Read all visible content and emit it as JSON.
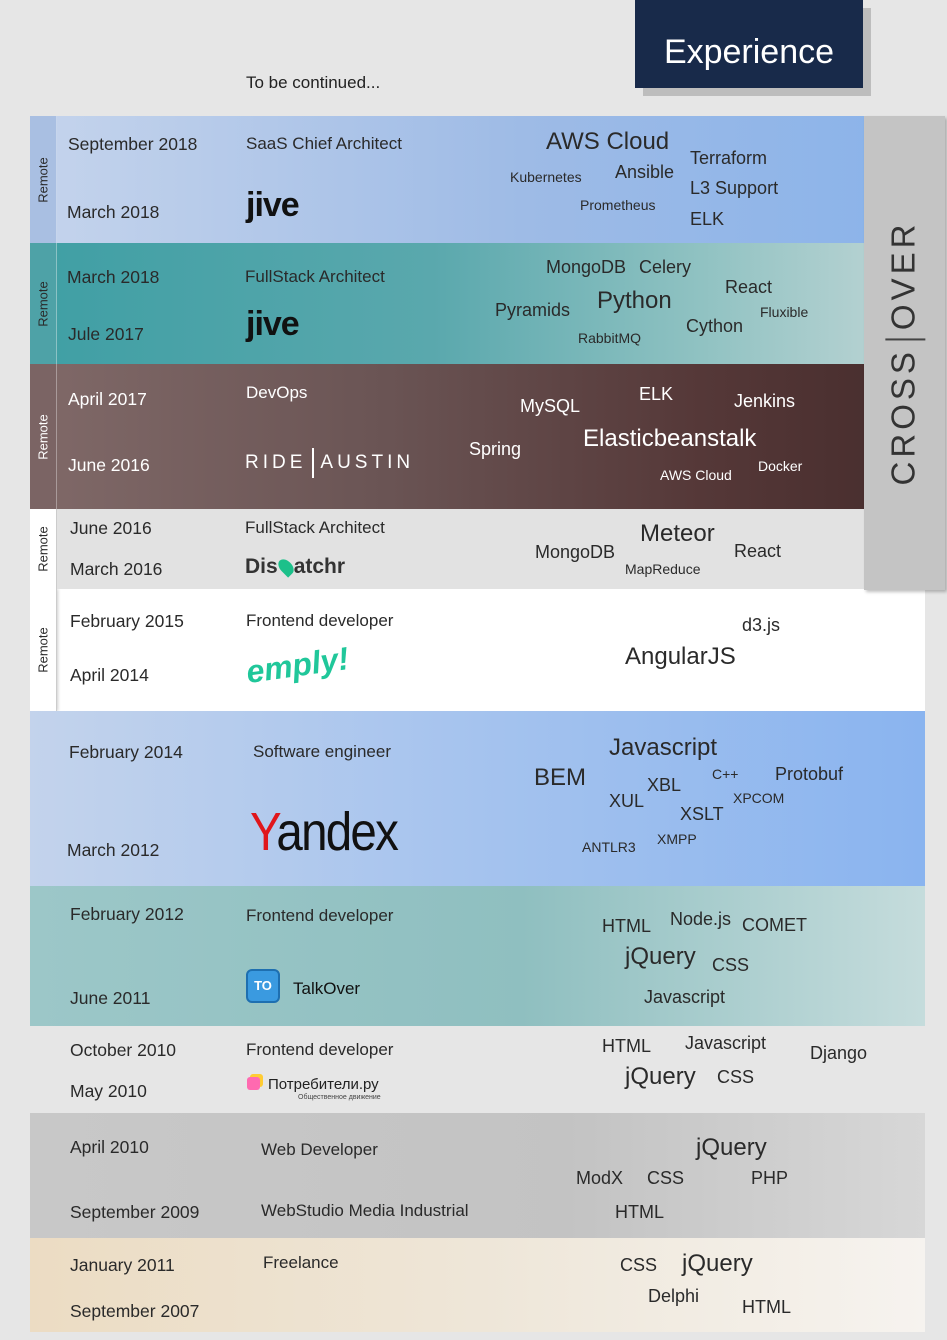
{
  "header": {
    "title": "Experience",
    "continued": "To be continued..."
  },
  "crossover": {
    "left": "CROSS",
    "right": "OVER"
  },
  "remote_label": "Remote",
  "jobs": [
    {
      "to": "September 2018",
      "from": "March 2018",
      "role": "SaaS Chief Architect",
      "logo": "jive",
      "skills": [
        "AWS Cloud",
        "Kubernetes",
        "Ansible",
        "Terraform",
        "L3 Support",
        "Prometheus",
        "ELK"
      ]
    },
    {
      "to": "March 2018",
      "from": "Jule 2017",
      "role": "FullStack Architect",
      "logo": "jive",
      "skills": [
        "MongoDB",
        "Celery",
        "React",
        "Pyramids",
        "Python",
        "Fluxible",
        "Cython",
        "RabbitMQ"
      ]
    },
    {
      "to": "April 2017",
      "from": "June 2016",
      "role": "DevOps",
      "logo_left": "RIDE",
      "logo_right": "AUSTIN",
      "skills": [
        "ELK",
        "MySQL",
        "Jenkins",
        "Spring",
        "Elasticbeanstalk",
        "AWS Cloud",
        "Docker"
      ]
    },
    {
      "to": "June 2016",
      "from": "March 2016",
      "role": "FullStack Architect",
      "logo_pre": "Dis",
      "logo_post": "atchr",
      "skills": [
        "Meteor",
        "MongoDB",
        "React",
        "MapReduce"
      ]
    },
    {
      "to": "February 2015",
      "from": "April 2014",
      "role": "Frontend developer",
      "logo": "emply!",
      "skills": [
        "d3.js",
        "AngularJS"
      ]
    },
    {
      "to": "February 2014",
      "from": "March 2012",
      "role": "Software engineer",
      "logo_y": "Y",
      "logo_rest": "andex",
      "skills": [
        "Javascript",
        "BEM",
        "XBL",
        "C++",
        "Protobuf",
        "XUL",
        "XPCOM",
        "XSLT",
        "ANTLR3",
        "XMPP"
      ]
    },
    {
      "to": "February 2012",
      "from": "June 2011",
      "role": "Frontend developer",
      "logo_icon": "TO",
      "logo": "TalkOver",
      "skills": [
        "HTML",
        "Node.js",
        "COMET",
        "jQuery",
        "CSS",
        "Javascript"
      ]
    },
    {
      "to": "October 2010",
      "from": "May 2010",
      "role": "Frontend developer",
      "logo": "Потребители.ру",
      "logo_sub": "Общественное движение",
      "skills": [
        "HTML",
        "Javascript",
        "Django",
        "jQuery",
        "CSS"
      ]
    },
    {
      "to": "April 2010",
      "from": "September 2009",
      "role": "Web Developer",
      "company": "WebStudio Media Industrial",
      "skills": [
        "jQuery",
        "ModX",
        "CSS",
        "PHP",
        "HTML"
      ]
    },
    {
      "to": "January 2011",
      "from": "September 2007",
      "role": "Freelance",
      "skills": [
        "CSS",
        "jQuery",
        "Delphi",
        "HTML"
      ]
    }
  ]
}
